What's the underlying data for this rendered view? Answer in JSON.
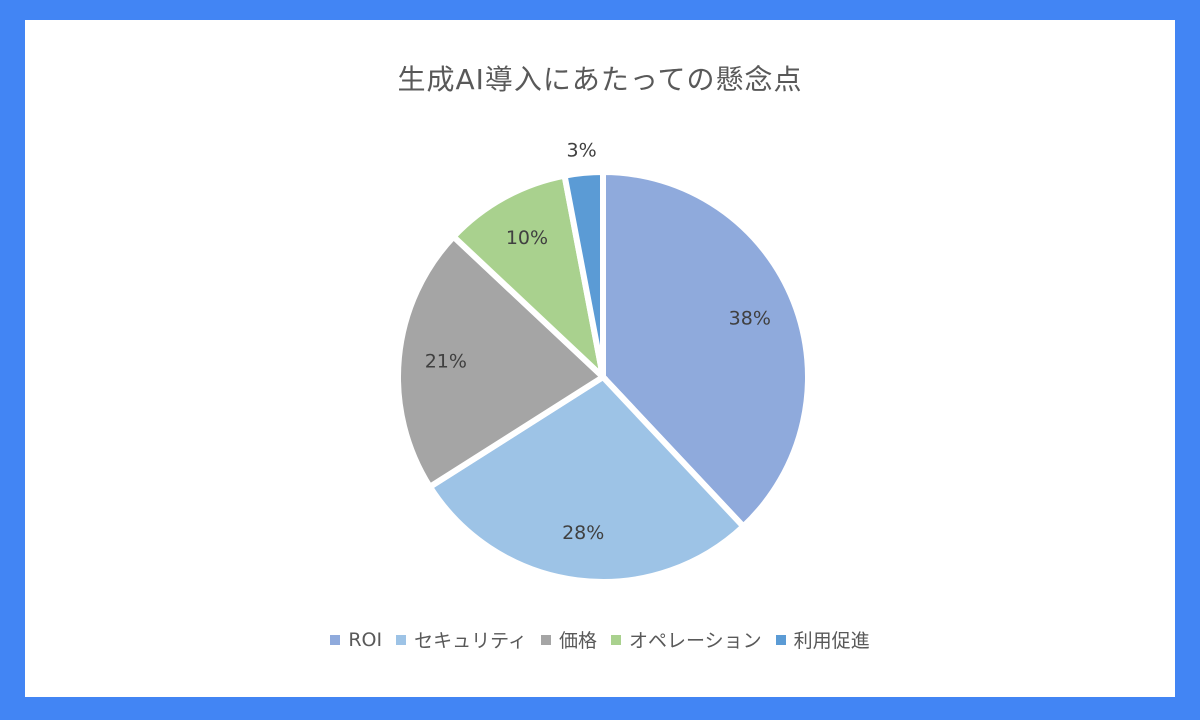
{
  "chart_data": {
    "type": "pie",
    "title": "生成AI導入にあたっての懸念点",
    "legend_position": "bottom",
    "categories": [
      "ROI",
      "セキュリティ",
      "価格",
      "オペレーション",
      "利用促進"
    ],
    "values": [
      38,
      28,
      21,
      10,
      3
    ],
    "labels": [
      "38%",
      "28%",
      "21%",
      "10%",
      "3%"
    ],
    "colors": [
      "#8FAADC",
      "#9DC3E6",
      "#A5A5A5",
      "#A9D18E",
      "#5B9BD5"
    ]
  },
  "colors": {
    "frame": "#4285F4",
    "panel": "#FFFFFF"
  }
}
